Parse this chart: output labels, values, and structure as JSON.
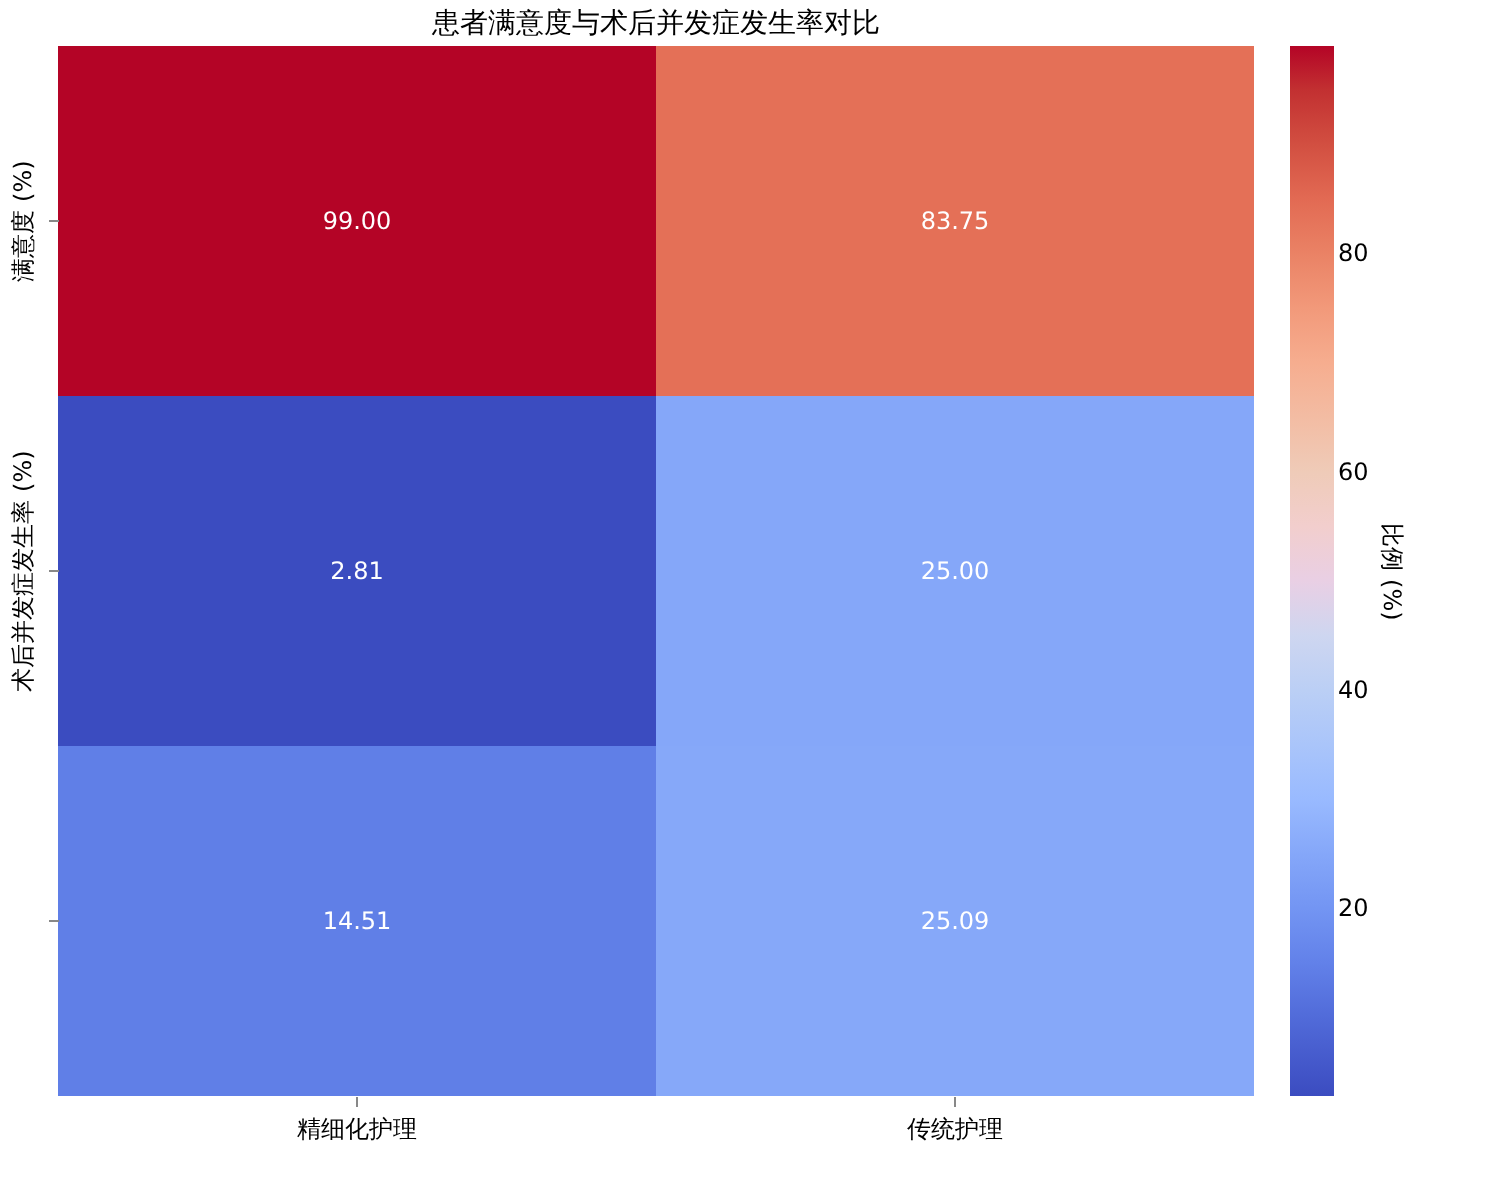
{
  "chart_data": {
    "type": "heatmap",
    "title": "患者满意度与术后并发症发生率对比",
    "categories": [
      "精细化护理",
      "传统护理"
    ],
    "y_categories": [
      "满意度 (%)",
      "术后并发症发生率 (%)",
      null
    ],
    "cells": [
      [
        99.0,
        83.75
      ],
      [
        2.81,
        25.0
      ],
      [
        14.51,
        25.09
      ]
    ],
    "cell_labels": [
      [
        "99.00",
        "83.75"
      ],
      [
        "2.81",
        "25.00"
      ],
      [
        "14.51",
        "25.09"
      ]
    ],
    "clabel": "比例 (%)",
    "clim": [
      2.81,
      99.0
    ],
    "cticks": [
      20,
      40,
      60,
      80
    ]
  }
}
